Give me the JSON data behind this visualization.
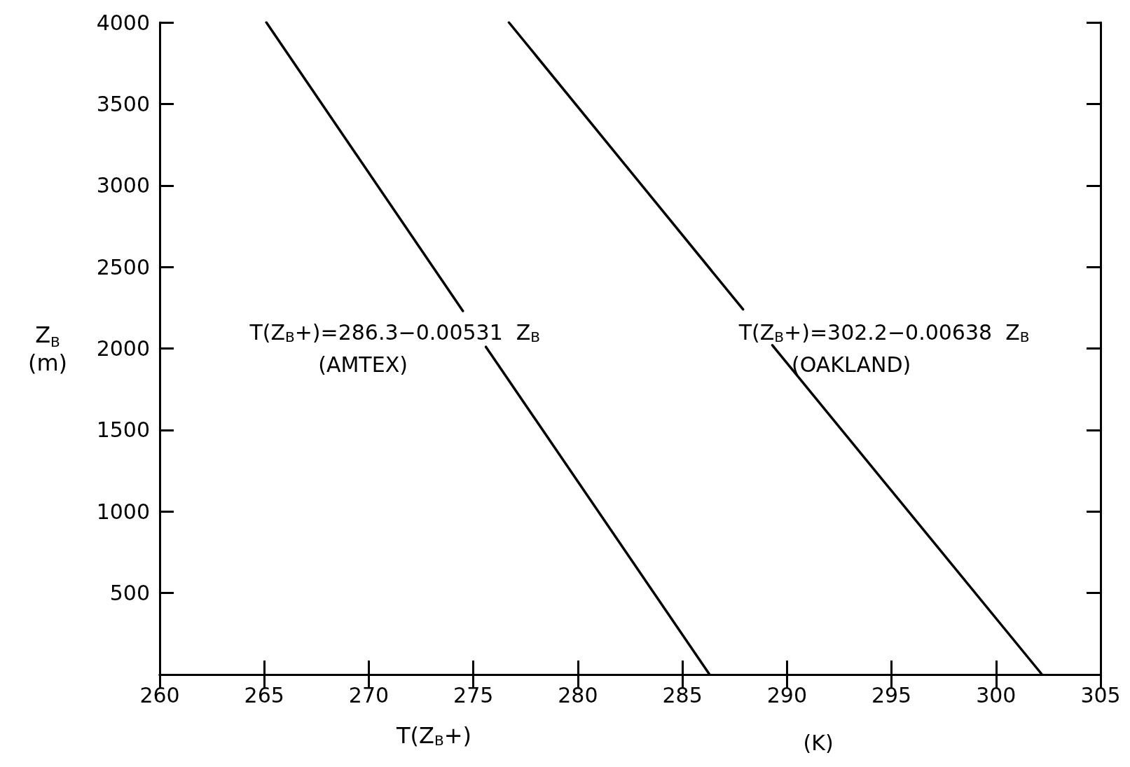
{
  "chart_data": {
    "type": "line",
    "xlabel": "T(Z$_{B}$+)",
    "ylabel": "Z$_{B}$\n(m)",
    "xlim": [
      260,
      305
    ],
    "xticks": [
      260,
      265,
      270,
      275,
      280,
      285,
      290,
      295,
      300,
      305
    ],
    "ylim": [
      0,
      4000
    ],
    "yticks": [
      500,
      1000,
      1500,
      2000,
      2500,
      3000,
      3500,
      4000
    ],
    "grid": false,
    "marker": "none",
    "line_style": "solid",
    "series": [
      {
        "color": "#000000",
        "x": [
          265.1,
          274.5,
          275,
          275.6,
          286.3
        ],
        "values": [
          4000,
          2230,
          null,
          2010,
          0
        ]
      },
      {
        "color": "#000000",
        "x": [
          276.7,
          287.9,
          288.5,
          289.3,
          302.2
        ],
        "values": [
          4000,
          2240,
          null,
          2020,
          0
        ]
      }
    ],
    "annotations": [
      "T(Z$_{B}$+)=286.3−0.00531  Z$_{B}$",
      "(AMTEX)",
      "T(Z$_{B}$+)=302.2−0.00638  Z$_{B}$",
      "(OAKLAND)",
      "(K)"
    ]
  }
}
